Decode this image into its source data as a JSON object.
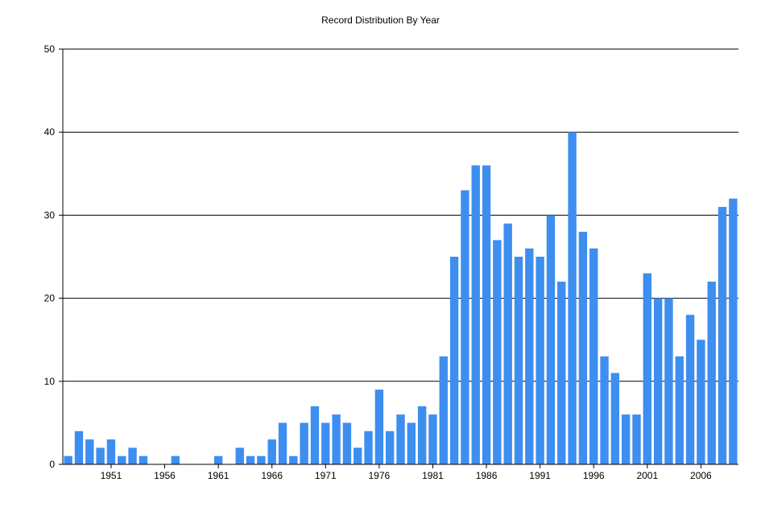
{
  "chart_data": {
    "type": "bar",
    "title": "Record Distribution By Year",
    "xlabel": "",
    "ylabel": "",
    "ylim": [
      0,
      50
    ],
    "yticks": [
      0,
      10,
      20,
      30,
      40,
      50
    ],
    "xtick_labels": [
      "1951",
      "1956",
      "1961",
      "1966",
      "1971",
      "1976",
      "1981",
      "1986",
      "1991",
      "1996",
      "2001",
      "2006"
    ],
    "grid": "horizontal",
    "bar_color": "#3e8ef0",
    "categories": [
      1947,
      1948,
      1949,
      1950,
      1951,
      1952,
      1953,
      1954,
      1955,
      1956,
      1957,
      1958,
      1959,
      1960,
      1961,
      1962,
      1963,
      1964,
      1965,
      1966,
      1967,
      1968,
      1969,
      1970,
      1971,
      1972,
      1973,
      1974,
      1975,
      1976,
      1977,
      1978,
      1979,
      1980,
      1981,
      1982,
      1983,
      1984,
      1985,
      1986,
      1987,
      1988,
      1989,
      1990,
      1991,
      1992,
      1993,
      1994,
      1995,
      1996,
      1997,
      1998,
      1999,
      2000,
      2001,
      2002,
      2003,
      2004,
      2005,
      2006,
      2007,
      2008,
      2009
    ],
    "values": [
      1,
      4,
      3,
      2,
      3,
      1,
      2,
      1,
      0,
      0,
      1,
      0,
      0,
      0,
      1,
      0,
      2,
      1,
      1,
      3,
      5,
      1,
      5,
      7,
      5,
      6,
      5,
      2,
      4,
      9,
      4,
      6,
      5,
      7,
      6,
      13,
      25,
      33,
      36,
      36,
      27,
      29,
      25,
      26,
      25,
      30,
      22,
      40,
      28,
      26,
      13,
      11,
      6,
      6,
      23,
      20,
      20,
      13,
      18,
      15,
      22,
      31,
      32
    ]
  }
}
